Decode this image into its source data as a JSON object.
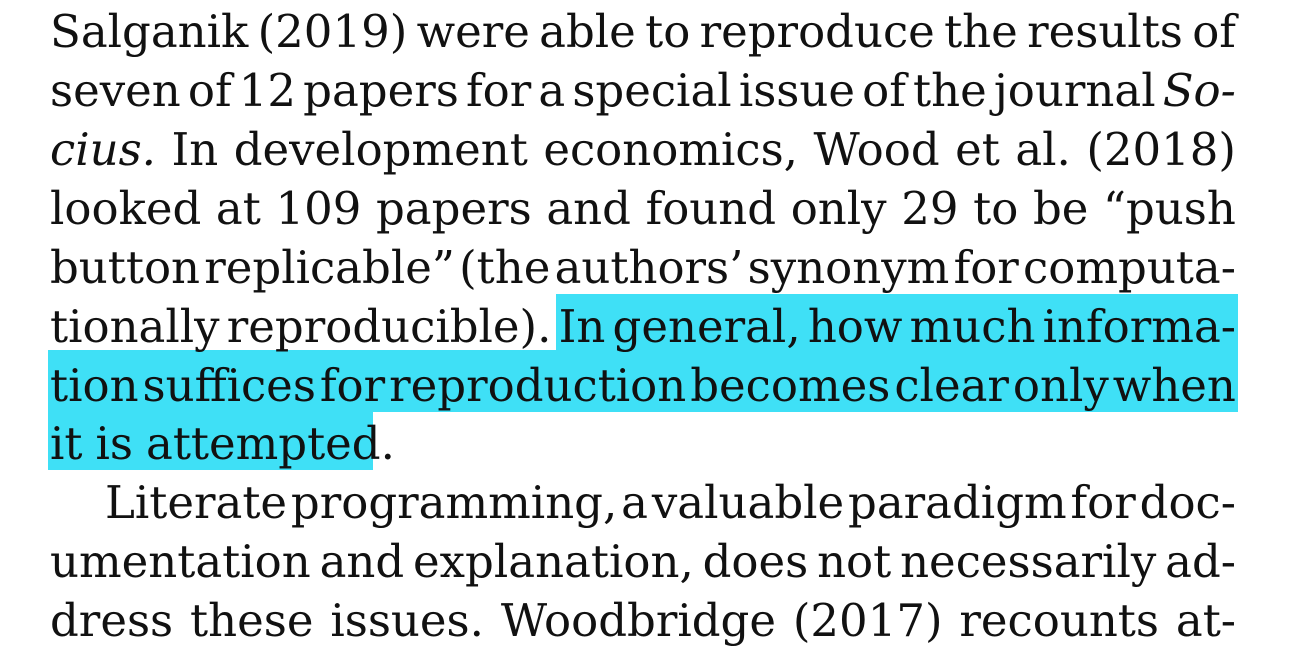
{
  "paper": {
    "colors": {
      "highlight": "#3fe0f6",
      "text": "#111111",
      "background": "#ffffff"
    },
    "lines": [
      {
        "words": [
          "Salganik",
          "(2019)",
          "were",
          "able",
          "to",
          "reproduce",
          "the",
          "results",
          "of"
        ]
      },
      {
        "words": [
          "seven",
          "of",
          "12",
          "papers",
          "for",
          "a",
          "special",
          "issue",
          "of",
          "the",
          "journal",
          "So-"
        ]
      },
      {
        "words": [
          "cius.",
          "In",
          "development",
          "economics,",
          "Wood",
          "et",
          "al.",
          "(2018)"
        ]
      },
      {
        "words": [
          "looked",
          "at",
          "109",
          "papers",
          "and",
          "found",
          "only",
          "29",
          "to",
          "be",
          "“push"
        ]
      },
      {
        "words": [
          "button",
          "replicable”",
          "(the",
          "authors’",
          "synonym",
          "for",
          "computa-"
        ]
      },
      {
        "words": [
          "tionally",
          "reproducible).",
          "In",
          "general,",
          "how",
          "much",
          "informa-"
        ]
      },
      {
        "words": [
          "tion",
          "suffices",
          "for",
          "reproduction",
          "becomes",
          "clear",
          "only",
          "when"
        ]
      },
      {
        "words": [
          "it",
          "is",
          "attempted."
        ]
      },
      {
        "words": [
          "Literate",
          "programming,",
          "a",
          "valuable",
          "paradigm",
          "for",
          "doc-"
        ]
      },
      {
        "words": [
          "umentation",
          "and",
          "explanation,",
          "does",
          "not",
          "necessarily",
          "ad-"
        ]
      },
      {
        "words": [
          "dress",
          "these",
          "issues.",
          "Woodbridge",
          "(2017)",
          "recounts",
          "at-"
        ]
      }
    ]
  }
}
